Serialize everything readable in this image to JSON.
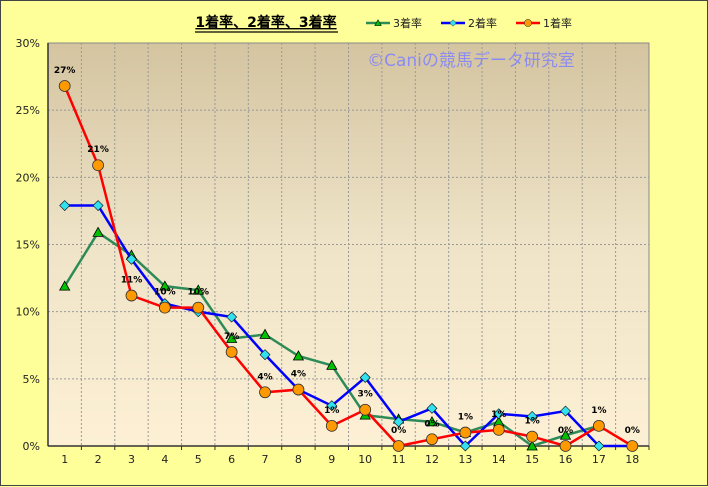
{
  "chart_data": {
    "type": "line",
    "title": "1着率、2着率、3着率",
    "watermark": "©Caniの競馬データ研究室",
    "xlabel": "",
    "ylabel": "",
    "categories": [
      "1",
      "2",
      "3",
      "4",
      "5",
      "6",
      "7",
      "8",
      "9",
      "10",
      "11",
      "12",
      "13",
      "14",
      "15",
      "16",
      "17",
      "18"
    ],
    "ylim": [
      0,
      30
    ],
    "yticks": [
      "0%",
      "5%",
      "10%",
      "15%",
      "20%",
      "25%",
      "30%"
    ],
    "grid": true,
    "legend": "top-right",
    "series": [
      {
        "name": "3着率",
        "color": "#2e8b57",
        "marker": "triangle",
        "marker_color": "#00c000",
        "values": [
          11.9,
          15.9,
          14.2,
          11.9,
          11.6,
          8.0,
          8.3,
          6.7,
          6.0,
          2.3,
          2.0,
          1.8,
          1.0,
          1.8,
          0,
          0.8,
          1.5,
          null
        ]
      },
      {
        "name": "2着率",
        "color": "#0000ff",
        "marker": "diamond",
        "marker_color": "#33e0f0",
        "values": [
          17.9,
          17.9,
          13.9,
          10.6,
          10.0,
          9.6,
          6.8,
          4.2,
          3.0,
          5.1,
          1.8,
          2.8,
          0,
          2.4,
          2.2,
          2.6,
          0,
          0
        ]
      },
      {
        "name": "1着率",
        "color": "#ff0000",
        "marker": "circle",
        "marker_color": "#ff9900",
        "values": [
          26.8,
          20.9,
          11.2,
          10.3,
          10.3,
          7.0,
          4.0,
          4.2,
          1.5,
          2.7,
          0,
          0.5,
          1.0,
          1.2,
          0.7,
          0,
          1.5,
          0
        ],
        "data_labels": [
          "27%",
          "21%",
          "11%",
          "10%",
          "10%",
          "7%",
          "4%",
          "4%",
          "1%",
          "3%",
          "0%",
          "0%",
          "1%",
          "1%",
          "1%",
          "0%",
          "1%",
          "0%"
        ]
      }
    ]
  }
}
